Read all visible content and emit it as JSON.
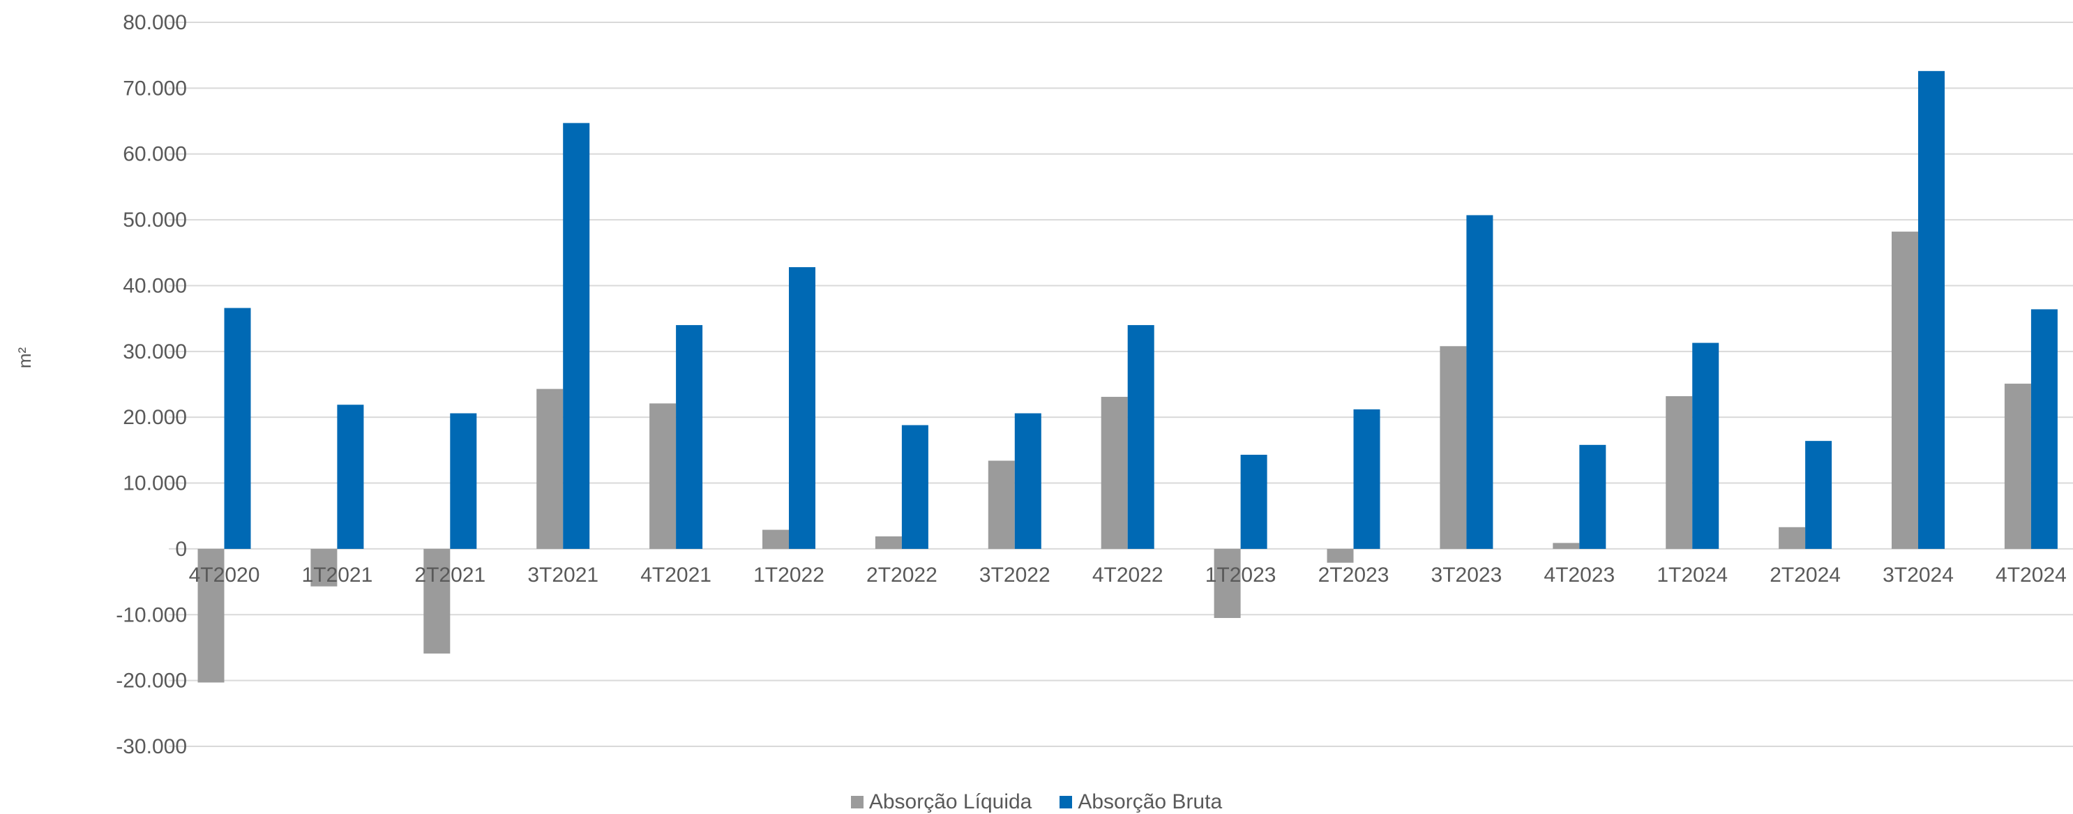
{
  "chart_data": {
    "type": "bar",
    "ylabel": "m²",
    "ylim": [
      -30000,
      80000
    ],
    "yticks": [
      80000,
      70000,
      60000,
      50000,
      40000,
      30000,
      20000,
      10000,
      0,
      -10000,
      -20000,
      -30000
    ],
    "ytick_labels": [
      "80.000",
      "70.000",
      "60.000",
      "50.000",
      "40.000",
      "30.000",
      "20.000",
      "10.000",
      "0",
      "-10.000",
      "-20.000",
      "-30.000"
    ],
    "grid": true,
    "legend_position": "bottom",
    "categories": [
      "4T2020",
      "1T2021",
      "2T2021",
      "3T2021",
      "4T2021",
      "1T2022",
      "2T2022",
      "3T2022",
      "4T2022",
      "1T2023",
      "2T2023",
      "3T2023",
      "4T2023",
      "1T2024",
      "2T2024",
      "3T2024",
      "4T2024"
    ],
    "series": [
      {
        "name": "Absorção Líquida",
        "color": "#9b9b9b",
        "values": [
          -20300,
          -5700,
          -15900,
          24300,
          22100,
          2900,
          1900,
          13400,
          23100,
          -10500,
          -2100,
          30800,
          900,
          23200,
          3300,
          48200,
          25100
        ]
      },
      {
        "name": "Absorção Bruta",
        "color": "#0069b4",
        "values": [
          36600,
          21900,
          20600,
          64700,
          34000,
          42800,
          18800,
          20600,
          34000,
          14300,
          21200,
          50700,
          15800,
          31300,
          16400,
          72600,
          36400
        ]
      }
    ]
  }
}
